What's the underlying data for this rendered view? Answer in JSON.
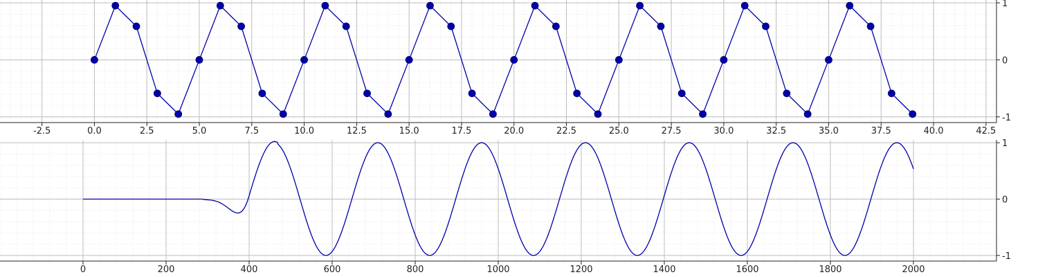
{
  "chart_data": [
    {
      "type": "line",
      "title": "",
      "xlabel": "",
      "ylabel": "",
      "xlim": [
        -4.5,
        43.0
      ],
      "ylim": [
        -1.1,
        1.05
      ],
      "xticks": [
        -2.5,
        0.0,
        2.5,
        5.0,
        7.5,
        10.0,
        12.5,
        15.0,
        17.5,
        20.0,
        22.5,
        25.0,
        27.5,
        30.0,
        32.5,
        35.0,
        37.5,
        40.0,
        42.5
      ],
      "xtick_labels": [
        "-2.5",
        "0.0",
        "2.5",
        "5.0",
        "7.5",
        "10.0",
        "12.5",
        "15.0",
        "17.5",
        "20.0",
        "22.5",
        "25.0",
        "27.5",
        "30.0",
        "32.5",
        "35.0",
        "37.5",
        "40.0",
        "42.5"
      ],
      "yticks": [
        -1,
        0,
        1
      ],
      "ytick_labels": [
        "-1",
        "0",
        "1"
      ],
      "y_axis_side": "right",
      "grid": true,
      "minor_grid": true,
      "markers": true,
      "series": [
        {
          "color": "#0000aa",
          "x": [
            0,
            1,
            2,
            3,
            4,
            5,
            6,
            7,
            8,
            9,
            10,
            11,
            12,
            13,
            14,
            15,
            16,
            17,
            18,
            19,
            20,
            21,
            22,
            23,
            24,
            25,
            26,
            27,
            28,
            29,
            30,
            31,
            32,
            33,
            34,
            35,
            36,
            37,
            38,
            39
          ],
          "y": [
            0,
            0.951,
            0.588,
            -0.588,
            -0.951,
            0,
            0.951,
            0.588,
            -0.588,
            -0.951,
            0,
            0.951,
            0.588,
            -0.588,
            -0.951,
            0,
            0.951,
            0.588,
            -0.588,
            -0.951,
            0,
            0.951,
            0.588,
            -0.588,
            -0.951,
            0,
            0.951,
            0.588,
            -0.588,
            -0.951,
            0,
            0.951,
            0.588,
            -0.588,
            -0.951,
            0,
            0.951,
            0.588,
            -0.588,
            -0.951
          ]
        }
      ]
    },
    {
      "type": "line",
      "title": "",
      "xlabel": "",
      "ylabel": "",
      "xlim": [
        -200,
        2200
      ],
      "ylim": [
        -1.1,
        1.05
      ],
      "xticks": [
        0,
        200,
        400,
        600,
        800,
        1000,
        1200,
        1400,
        1600,
        1800,
        2000
      ],
      "xtick_labels": [
        "0",
        "200",
        "400",
        "600",
        "800",
        "1000",
        "1200",
        "1400",
        "1600",
        "1800",
        "2000"
      ],
      "yticks": [
        -1,
        0,
        1
      ],
      "ytick_labels": [
        "-1",
        "0",
        "1"
      ],
      "y_axis_side": "right",
      "grid": true,
      "minor_grid": true,
      "markers": false,
      "series": [
        {
          "color": "#0000aa",
          "x": [
            0,
            2000
          ],
          "y": [
            0,
            0.59
          ],
          "description_values": {
            "flat_until": 290,
            "sine_period": 250,
            "peak_x": [
              460,
              710,
              960,
              1210,
              1460,
              1710,
              1960
            ],
            "trough_x": [
              585,
              835,
              1085,
              1335,
              1585,
              1835
            ]
          }
        }
      ]
    }
  ]
}
